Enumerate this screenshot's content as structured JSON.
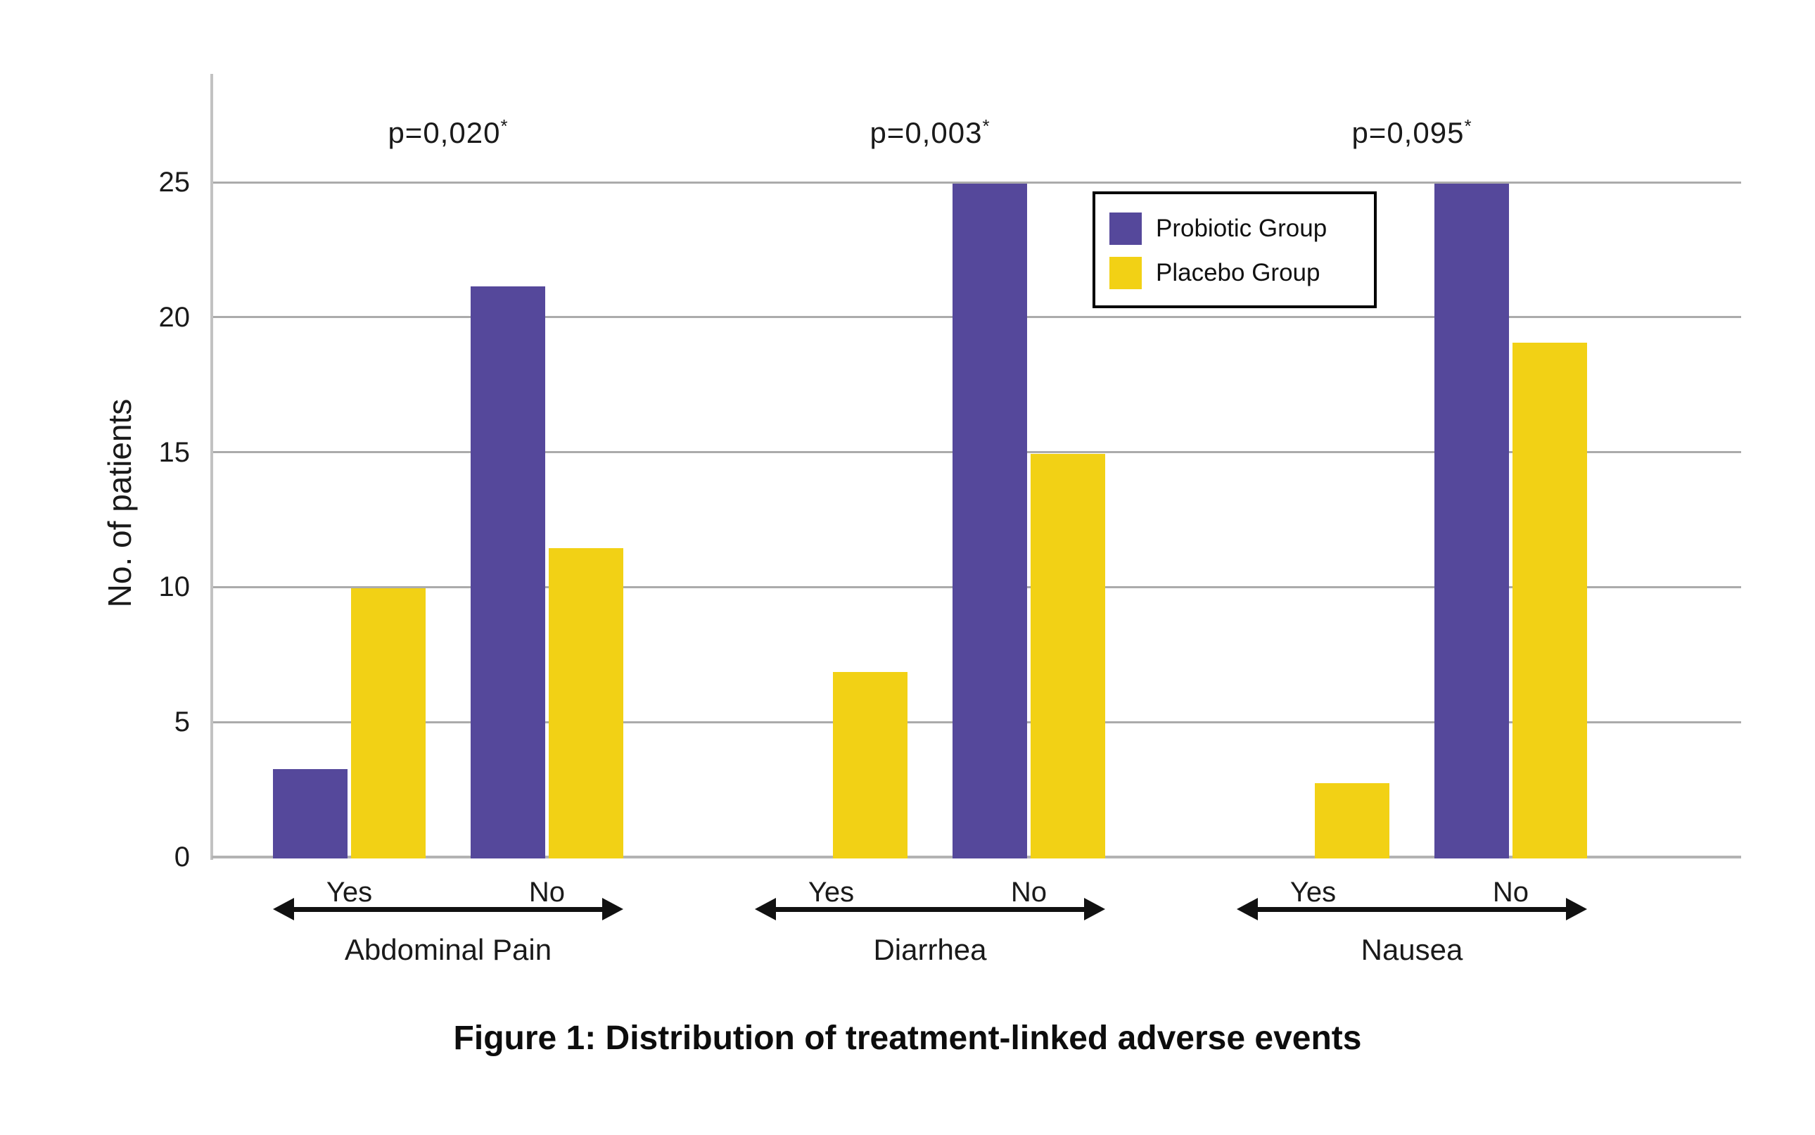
{
  "figure": {
    "caption": "Figure 1: Distribution of treatment-linked adverse events"
  },
  "legend": {
    "items": [
      {
        "label": "Probiotic Group",
        "color": "#55489B"
      },
      {
        "label": "Placebo Group",
        "color": "#F2D115"
      }
    ]
  },
  "chart_data": {
    "type": "bar",
    "title": "Figure 1: Distribution of treatment-linked adverse events",
    "ylabel": "No. of patients",
    "xlabel": "",
    "ylim": [
      0,
      29
    ],
    "yticks": [
      0,
      5,
      10,
      15,
      20,
      25
    ],
    "grid": "horizontal",
    "legend_position": "top-right",
    "series": [
      {
        "name": "Probiotic Group",
        "color": "#55489B"
      },
      {
        "name": "Placebo Group",
        "color": "#F2D115"
      }
    ],
    "groups": [
      {
        "label": "Abdominal Pain",
        "p_label": "p=0,020",
        "p_superscript": "*",
        "categories": [
          "Yes",
          "No"
        ],
        "series_values": {
          "Probiotic Group": [
            3.3,
            21.2
          ],
          "Placebo Group": [
            10,
            11.5
          ]
        }
      },
      {
        "label": "Diarrhea",
        "p_label": "p=0,003",
        "p_superscript": "*",
        "categories": [
          "Yes",
          "No"
        ],
        "series_values": {
          "Probiotic Group": [
            0,
            25
          ],
          "Placebo Group": [
            6.9,
            15
          ]
        }
      },
      {
        "label": "Nausea",
        "p_label": "p=0,095",
        "p_superscript": "*",
        "categories": [
          "Yes",
          "No"
        ],
        "series_values": {
          "Probiotic Group": [
            0,
            25
          ],
          "Placebo Group": [
            2.8,
            19.1
          ]
        }
      }
    ]
  }
}
